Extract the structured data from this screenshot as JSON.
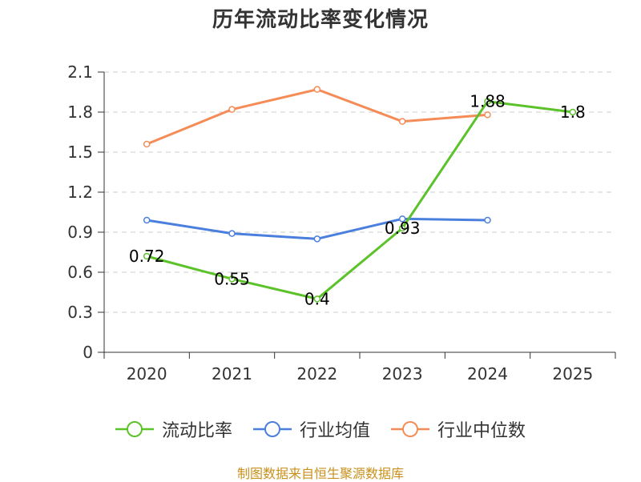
{
  "chart_data": {
    "type": "line",
    "title": "历年流动比率变化情况",
    "categories": [
      "2020",
      "2021",
      "2022",
      "2023",
      "2024",
      "2025"
    ],
    "ylim": [
      0,
      2.1
    ],
    "yticks": [
      "0",
      "0.3",
      "0.6",
      "0.9",
      "1.2",
      "1.5",
      "1.8",
      "2.1"
    ],
    "grid": true,
    "legend_position": "bottom",
    "series": [
      {
        "name": "流动比率",
        "color": "#5cc22a",
        "values": [
          0.72,
          0.55,
          0.4,
          0.93,
          1.88,
          1.8
        ],
        "labels": [
          "0.72",
          "0.55",
          "0.4",
          "0.93",
          "1.88",
          "1.8"
        ]
      },
      {
        "name": "行业均值",
        "color": "#4a7fdd",
        "values": [
          0.99,
          0.89,
          0.85,
          1.0,
          0.99,
          null
        ]
      },
      {
        "name": "行业中位数",
        "color": "#f58c57",
        "values": [
          1.56,
          1.82,
          1.97,
          1.73,
          1.78,
          null
        ]
      }
    ],
    "source": "制图数据来自恒生聚源数据库"
  }
}
